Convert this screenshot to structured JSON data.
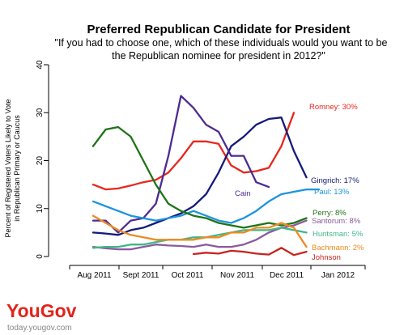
{
  "chart_data": {
    "type": "line",
    "title": "Preferred Republican Candidate for President",
    "subtitle_lines": [
      "\"If you had to choose one, which of these individuals would you want to be",
      "the Republican nominee for president in 2012?\""
    ],
    "ylabel_lines": [
      "Percent of Registered Voters Likely to Vote",
      "in Republican Primary or Caucus"
    ],
    "ylim": [
      0,
      40
    ],
    "yticks": [
      "0",
      "10",
      "20",
      "30",
      "40"
    ],
    "xticks": [
      "Aug 2011",
      "Sept 2011",
      "Oct 2011",
      "Nov 2011",
      "Dec 2011",
      "Jan 2012"
    ],
    "grid": false,
    "series": [
      {
        "name": "Romney",
        "label": "Romney: 30%",
        "color": "#e8261e",
        "points": [
          [
            0,
            15
          ],
          [
            0.5,
            14
          ],
          [
            1,
            14.2
          ],
          [
            1.5,
            14.8
          ],
          [
            2,
            15.5
          ],
          [
            2.5,
            16
          ],
          [
            3,
            17.5
          ],
          [
            3.5,
            20.5
          ],
          [
            4,
            24
          ],
          [
            4.5,
            24
          ],
          [
            5,
            23.5
          ],
          [
            5.5,
            19
          ],
          [
            6,
            17.5
          ],
          [
            6.5,
            17.8
          ],
          [
            7,
            18.5
          ],
          [
            7.5,
            23
          ],
          [
            8,
            30
          ]
        ]
      },
      {
        "name": "Gingrich",
        "label": "Gingrich: 17%",
        "color": "#141a78",
        "points": [
          [
            0,
            5
          ],
          [
            0.5,
            4.8
          ],
          [
            1,
            4.5
          ],
          [
            1.5,
            5.5
          ],
          [
            2,
            6
          ],
          [
            2.5,
            7
          ],
          [
            3,
            8
          ],
          [
            3.5,
            9
          ],
          [
            4,
            10.5
          ],
          [
            4.5,
            13
          ],
          [
            5,
            17.5
          ],
          [
            5.5,
            23
          ],
          [
            6,
            25
          ],
          [
            6.5,
            27.5
          ],
          [
            7,
            28.7
          ],
          [
            7.5,
            29
          ],
          [
            8,
            22
          ],
          [
            8.5,
            16.5
          ]
        ]
      },
      {
        "name": "Cain",
        "label": "Cain",
        "color": "#4d2b91",
        "points": [
          [
            0,
            7.5
          ],
          [
            0.5,
            7.5
          ],
          [
            1,
            5
          ],
          [
            1.5,
            7.5
          ],
          [
            2,
            8
          ],
          [
            2.5,
            11
          ],
          [
            3,
            21
          ],
          [
            3.5,
            33.5
          ],
          [
            4,
            31
          ],
          [
            4.5,
            27.5
          ],
          [
            5,
            26
          ],
          [
            5.5,
            21
          ],
          [
            6,
            21
          ],
          [
            6.5,
            15.5
          ],
          [
            7,
            14.5
          ]
        ]
      },
      {
        "name": "Paul",
        "label": "Paul: 13%",
        "color": "#1d94dd",
        "points": [
          [
            0,
            11.5
          ],
          [
            0.5,
            10.5
          ],
          [
            1,
            9.5
          ],
          [
            1.5,
            8.5
          ],
          [
            2,
            8
          ],
          [
            2.5,
            7.5
          ],
          [
            3,
            8
          ],
          [
            3.5,
            8.5
          ],
          [
            4,
            9.5
          ],
          [
            4.5,
            8.5
          ],
          [
            5,
            7.5
          ],
          [
            5.5,
            7
          ],
          [
            6,
            8
          ],
          [
            6.5,
            9.5
          ],
          [
            7,
            11.5
          ],
          [
            7.5,
            13
          ],
          [
            8,
            13.5
          ],
          [
            8.5,
            14
          ],
          [
            9,
            14
          ]
        ]
      },
      {
        "name": "Perry",
        "label": "Perry: 8%",
        "color": "#1f7317",
        "points": [
          [
            0,
            23
          ],
          [
            0.5,
            26.5
          ],
          [
            1,
            27
          ],
          [
            1.5,
            25
          ],
          [
            2,
            20
          ],
          [
            2.5,
            15
          ],
          [
            3,
            11
          ],
          [
            3.5,
            9.5
          ],
          [
            4,
            8.5
          ],
          [
            4.5,
            8
          ],
          [
            5,
            7
          ],
          [
            5.5,
            6.5
          ],
          [
            6,
            6
          ],
          [
            6.5,
            6.5
          ],
          [
            7,
            7
          ],
          [
            7.5,
            6.5
          ],
          [
            8,
            7
          ],
          [
            8.5,
            8
          ]
        ]
      },
      {
        "name": "Santorum",
        "label": "Santorum: 8%",
        "color": "#8a5a9e",
        "points": [
          [
            0,
            2
          ],
          [
            0.5,
            1.7
          ],
          [
            1,
            1.5
          ],
          [
            1.5,
            1.5
          ],
          [
            2,
            2
          ],
          [
            2.5,
            2.5
          ],
          [
            3,
            2.3
          ],
          [
            3.5,
            2.2
          ],
          [
            4,
            2
          ],
          [
            4.5,
            2.5
          ],
          [
            5,
            2
          ],
          [
            5.5,
            2
          ],
          [
            6,
            2.5
          ],
          [
            6.5,
            3.5
          ],
          [
            7,
            5
          ],
          [
            7.5,
            6
          ],
          [
            8,
            6.5
          ],
          [
            8.5,
            7.5
          ]
        ]
      },
      {
        "name": "Huntsman",
        "label": "Huntsman: 5%",
        "color": "#41b587",
        "points": [
          [
            0,
            1.8
          ],
          [
            0.5,
            2
          ],
          [
            1,
            2
          ],
          [
            1.5,
            2.5
          ],
          [
            2,
            2.5
          ],
          [
            2.5,
            3
          ],
          [
            3,
            3.5
          ],
          [
            3.5,
            3.5
          ],
          [
            4,
            4
          ],
          [
            4.5,
            4
          ],
          [
            5,
            4.5
          ],
          [
            5.5,
            5
          ],
          [
            6,
            5.5
          ],
          [
            6.5,
            5.5
          ],
          [
            7,
            5.5
          ],
          [
            7.5,
            6
          ],
          [
            8,
            5.5
          ],
          [
            8.5,
            5
          ]
        ]
      },
      {
        "name": "Bachmann",
        "label": "Bachmann: 2%",
        "color": "#ed8a22",
        "points": [
          [
            0,
            8.5
          ],
          [
            0.5,
            7
          ],
          [
            1,
            5.5
          ],
          [
            1.5,
            4.5
          ],
          [
            2,
            4
          ],
          [
            2.5,
            3.5
          ],
          [
            3,
            3.5
          ],
          [
            3.5,
            3.5
          ],
          [
            4,
            3.5
          ],
          [
            4.5,
            4
          ],
          [
            5,
            4
          ],
          [
            5.5,
            5
          ],
          [
            6,
            5
          ],
          [
            6.5,
            6
          ],
          [
            7,
            6
          ],
          [
            7.5,
            7
          ],
          [
            8,
            6
          ],
          [
            8.5,
            2
          ]
        ]
      },
      {
        "name": "Johnson",
        "label": "Johnson",
        "color": "#c8231e",
        "points": [
          [
            4,
            0.5
          ],
          [
            4.5,
            0.8
          ],
          [
            5,
            0.6
          ],
          [
            5.5,
            1.2
          ],
          [
            6,
            1
          ],
          [
            6.5,
            0.6
          ],
          [
            7,
            0.4
          ],
          [
            7.5,
            1.8
          ],
          [
            8,
            0.3
          ],
          [
            8.5,
            1
          ]
        ]
      }
    ]
  },
  "branding": {
    "logo": "YouGov",
    "url": "today.yougov.com"
  }
}
